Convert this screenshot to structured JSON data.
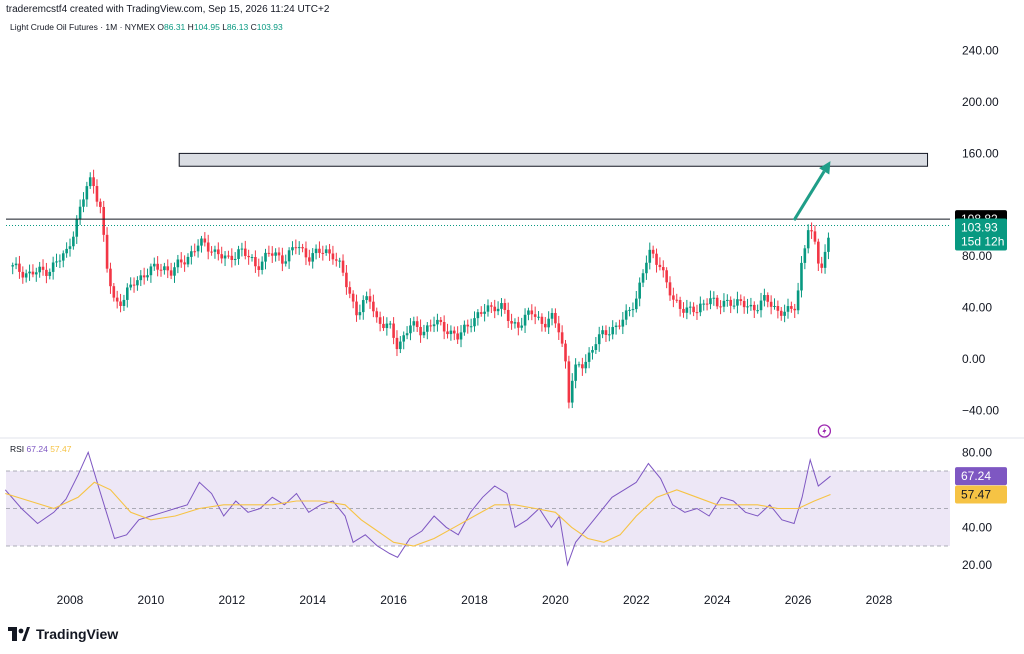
{
  "header": {
    "text": "traderemcstf4 created with TradingView.com, Sep 15, 2026 11:24 UTC+2"
  },
  "legend": {
    "symbol": "Light Crude Oil Futures · 1M · NYMEX",
    "o_label": "O",
    "o": "86.31",
    "h_label": "H",
    "h": "104.95",
    "l_label": "L",
    "l": "86.13",
    "c_label": "C",
    "c": "103.93"
  },
  "rsi_legend": {
    "label": "RSI",
    "rsi": "67.24",
    "ma": "57.47"
  },
  "footer": {
    "brand": "TradingView"
  },
  "colors": {
    "up": "#089981",
    "down": "#f23645",
    "rsi": "#7e57c2",
    "rsi_ma": "#f6c344",
    "band": "#ede7f6",
    "box": "#d1d4dc",
    "arrow": "#1f9e88",
    "price_tag": "#089981",
    "level_tag": "#000000"
  },
  "chart_data": [
    {
      "type": "candlestick",
      "title": "Light Crude Oil Futures · 1M · NYMEX",
      "x_ticks": [
        "2008",
        "2010",
        "2012",
        "2014",
        "2016",
        "2018",
        "2020",
        "2022",
        "2024",
        "2026",
        "2028"
      ],
      "y_ticks": [
        "240.00",
        "200.00",
        "160.00",
        "80.00",
        "40.00",
        "0.00",
        "−40.00"
      ],
      "ylim": [
        -40,
        240
      ],
      "last_price": {
        "value": 103.93,
        "label": "103.93",
        "countdown": "15d 12h"
      },
      "horizontal_level": {
        "value": 108.82,
        "label": "108.82"
      },
      "resistance_zone": {
        "x_start": 2010.7,
        "x_end": 2029.2,
        "y_low": 150,
        "y_high": 160
      },
      "projection_arrow": {
        "from": [
          2025.9,
          108
        ],
        "to": [
          2026.8,
          154
        ]
      },
      "price_path": [
        [
          2006.5,
          72
        ],
        [
          2007.0,
          66
        ],
        [
          2007.5,
          70
        ],
        [
          2007.9,
          82
        ],
        [
          2008.2,
          110
        ],
        [
          2008.45,
          138
        ],
        [
          2008.55,
          140
        ],
        [
          2008.75,
          118
        ],
        [
          2008.9,
          72
        ],
        [
          2009.1,
          44
        ],
        [
          2009.3,
          46
        ],
        [
          2009.6,
          60
        ],
        [
          2009.9,
          68
        ],
        [
          2010.3,
          72
        ],
        [
          2010.5,
          68
        ],
        [
          2010.8,
          76
        ],
        [
          2011.2,
          90
        ],
        [
          2011.5,
          86
        ],
        [
          2011.9,
          76
        ],
        [
          2012.2,
          86
        ],
        [
          2012.6,
          72
        ],
        [
          2012.9,
          82
        ],
        [
          2013.3,
          78
        ],
        [
          2013.6,
          88
        ],
        [
          2013.9,
          80
        ],
        [
          2014.3,
          84
        ],
        [
          2014.5,
          82
        ],
        [
          2014.7,
          70
        ],
        [
          2014.9,
          52
        ],
        [
          2015.1,
          36
        ],
        [
          2015.4,
          48
        ],
        [
          2015.6,
          30
        ],
        [
          2015.9,
          24
        ],
        [
          2016.1,
          10
        ],
        [
          2016.4,
          26
        ],
        [
          2016.7,
          22
        ],
        [
          2017.0,
          28
        ],
        [
          2017.3,
          24
        ],
        [
          2017.6,
          16
        ],
        [
          2017.9,
          30
        ],
        [
          2018.2,
          36
        ],
        [
          2018.5,
          42
        ],
        [
          2018.7,
          40
        ],
        [
          2018.9,
          26
        ],
        [
          2019.1,
          28
        ],
        [
          2019.4,
          36
        ],
        [
          2019.7,
          28
        ],
        [
          2019.9,
          32
        ],
        [
          2020.1,
          22
        ],
        [
          2020.25,
          -2
        ],
        [
          2020.3,
          -36
        ],
        [
          2020.45,
          -10
        ],
        [
          2020.7,
          -4
        ],
        [
          2021.0,
          14
        ],
        [
          2021.4,
          24
        ],
        [
          2021.7,
          30
        ],
        [
          2022.0,
          48
        ],
        [
          2022.2,
          72
        ],
        [
          2022.35,
          82
        ],
        [
          2022.6,
          74
        ],
        [
          2022.9,
          44
        ],
        [
          2023.2,
          40
        ],
        [
          2023.5,
          36
        ],
        [
          2023.8,
          50
        ],
        [
          2024.0,
          40
        ],
        [
          2024.3,
          46
        ],
        [
          2024.6,
          42
        ],
        [
          2024.9,
          40
        ],
        [
          2025.2,
          46
        ],
        [
          2025.5,
          38
        ],
        [
          2025.8,
          36
        ],
        [
          2025.95,
          42
        ],
        [
          2026.1,
          78
        ],
        [
          2026.25,
          102
        ],
        [
          2026.4,
          90
        ],
        [
          2026.55,
          70
        ],
        [
          2026.7,
          86
        ],
        [
          2026.8,
          103.93
        ]
      ]
    },
    {
      "type": "line",
      "title": "RSI",
      "y_ticks": [
        "80.00",
        "40.00",
        "20.00"
      ],
      "ylim": [
        10,
        90
      ],
      "bands": {
        "upper": 70,
        "middle": 50,
        "lower": 30
      },
      "series": [
        {
          "name": "RSI 67.24",
          "x": [
            2006.4,
            2006.8,
            2007.2,
            2007.6,
            2007.9,
            2008.2,
            2008.45,
            2008.7,
            2008.9,
            2009.1,
            2009.4,
            2009.7,
            2010.0,
            2010.3,
            2010.6,
            2010.9,
            2011.2,
            2011.5,
            2011.8,
            2012.1,
            2012.4,
            2012.7,
            2013.0,
            2013.3,
            2013.6,
            2013.9,
            2014.2,
            2014.5,
            2014.8,
            2015.0,
            2015.3,
            2015.6,
            2015.9,
            2016.1,
            2016.4,
            2016.7,
            2017.0,
            2017.3,
            2017.6,
            2017.9,
            2018.2,
            2018.5,
            2018.8,
            2019.0,
            2019.3,
            2019.6,
            2019.9,
            2020.1,
            2020.3,
            2020.5,
            2020.8,
            2021.1,
            2021.4,
            2021.7,
            2022.0,
            2022.3,
            2022.6,
            2022.9,
            2023.2,
            2023.5,
            2023.8,
            2024.1,
            2024.4,
            2024.7,
            2025.0,
            2025.3,
            2025.6,
            2025.9,
            2026.1,
            2026.3,
            2026.5,
            2026.8
          ],
          "y": [
            60,
            50,
            42,
            48,
            55,
            68,
            80,
            62,
            48,
            34,
            36,
            44,
            46,
            48,
            50,
            52,
            64,
            58,
            46,
            54,
            48,
            50,
            56,
            52,
            58,
            48,
            52,
            54,
            46,
            32,
            36,
            30,
            26,
            24,
            34,
            38,
            46,
            40,
            36,
            48,
            56,
            62,
            58,
            40,
            44,
            50,
            40,
            46,
            20,
            32,
            40,
            48,
            56,
            60,
            64,
            74,
            66,
            52,
            48,
            50,
            46,
            56,
            54,
            48,
            46,
            52,
            44,
            42,
            56,
            76,
            62,
            67.24
          ]
        },
        {
          "name": "RSI-based MA 57.47",
          "x": [
            2006.4,
            2007.0,
            2007.6,
            2008.2,
            2008.6,
            2009.0,
            2009.5,
            2010.0,
            2010.6,
            2011.2,
            2011.8,
            2012.4,
            2013.0,
            2013.6,
            2014.2,
            2014.8,
            2015.2,
            2015.6,
            2016.0,
            2016.5,
            2017.0,
            2017.5,
            2018.0,
            2018.5,
            2019.0,
            2019.5,
            2020.0,
            2020.4,
            2020.8,
            2021.2,
            2021.6,
            2022.0,
            2022.5,
            2023.0,
            2023.5,
            2024.0,
            2024.5,
            2025.0,
            2025.5,
            2026.0,
            2026.4,
            2026.8
          ],
          "y": [
            58,
            54,
            50,
            56,
            64,
            60,
            48,
            44,
            46,
            50,
            52,
            52,
            52,
            54,
            54,
            52,
            44,
            38,
            32,
            30,
            34,
            40,
            46,
            52,
            52,
            50,
            48,
            40,
            34,
            32,
            36,
            46,
            56,
            60,
            56,
            52,
            52,
            52,
            50,
            50,
            54,
            57.47
          ]
        }
      ]
    }
  ]
}
